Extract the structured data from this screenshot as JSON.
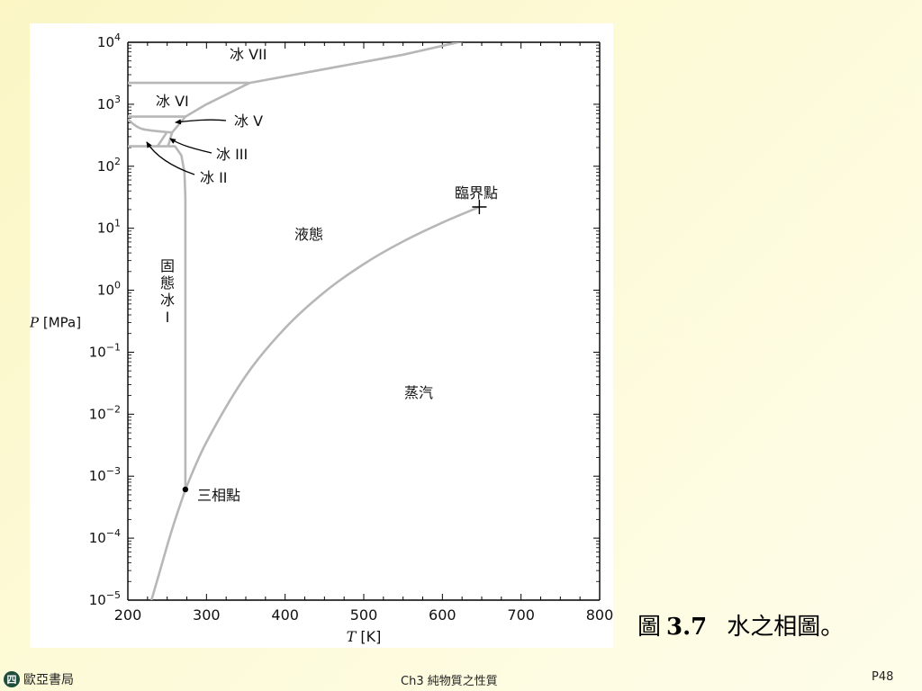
{
  "chart_data": {
    "type": "line",
    "xlabel_var": "T",
    "xlabel_unit": " [K]",
    "ylabel_var": "P",
    "ylabel_unit": " [MPa]",
    "x_ticks": [
      200,
      300,
      400,
      500,
      600,
      700,
      800
    ],
    "xlim": [
      200,
      800
    ],
    "y_scale": "log",
    "ylim": [
      1e-05,
      10000.0
    ],
    "y_tick_labels": [
      {
        "base": "10",
        "exp": "4",
        "value": 10000
      },
      {
        "base": "10",
        "exp": "3",
        "value": 1000
      },
      {
        "base": "10",
        "exp": "2",
        "value": 100
      },
      {
        "base": "10",
        "exp": "1",
        "value": 10
      },
      {
        "base": "10",
        "exp": "0",
        "value": 1
      },
      {
        "base": "10",
        "exp": "−1",
        "value": 0.1
      },
      {
        "base": "10",
        "exp": "−2",
        "value": 0.01
      },
      {
        "base": "10",
        "exp": "−3",
        "value": 0.001
      },
      {
        "base": "10",
        "exp": "−4",
        "value": 0.0001
      },
      {
        "base": "10",
        "exp": "−5",
        "value": 1e-05
      }
    ],
    "series": [
      {
        "id": "vaporization-curve",
        "points": [
          [
            273.16,
            0.000611
          ],
          [
            300,
            0.00354
          ],
          [
            350,
            0.0417
          ],
          [
            400,
            0.2456
          ],
          [
            450,
            0.932
          ],
          [
            500,
            2.64
          ],
          [
            550,
            6.12
          ],
          [
            600,
            12.34
          ],
          [
            647,
            22.06
          ]
        ]
      },
      {
        "id": "sublimation-curve",
        "points": [
          [
            230,
            1e-05
          ],
          [
            240,
            2.72e-05
          ],
          [
            250,
            7.59e-05
          ],
          [
            260,
            0.000196
          ],
          [
            273.16,
            0.000611
          ]
        ]
      },
      {
        "id": "melting-curve-ice-I",
        "points": [
          [
            273.16,
            0.000611
          ],
          [
            273.16,
            30
          ],
          [
            272,
            80
          ],
          [
            268,
            150
          ],
          [
            260,
            209.9
          ],
          [
            251.2,
            209.9
          ]
        ]
      },
      {
        "id": "ice-VII-liquid-boundary",
        "points": [
          [
            355,
            2216
          ],
          [
            550,
            6300
          ],
          [
            725,
            20000
          ]
        ]
      },
      {
        "id": "ice-VI-liquid-boundary",
        "points": [
          [
            273.3,
            632
          ],
          [
            300,
            1000
          ],
          [
            355,
            2216
          ]
        ]
      },
      {
        "id": "ice-V-liquid-boundary",
        "points": [
          [
            256.2,
            350
          ],
          [
            273.3,
            632
          ]
        ]
      },
      {
        "id": "ice-III-liquid-boundary",
        "points": [
          [
            251.2,
            209.9
          ],
          [
            256.2,
            350
          ]
        ]
      },
      {
        "id": "ice-VI-VII-boundary",
        "points": [
          [
            200,
            2216
          ],
          [
            355,
            2216
          ]
        ]
      },
      {
        "id": "ice-V-VI-boundary",
        "points": [
          [
            200,
            632
          ],
          [
            273.3,
            632
          ]
        ]
      },
      {
        "id": "ice-II-V-boundary",
        "points": [
          [
            200,
            570
          ],
          [
            218,
            400
          ],
          [
            256.2,
            350
          ]
        ]
      },
      {
        "id": "ice-II-III-boundary",
        "points": [
          [
            238,
            213
          ],
          [
            249,
            344
          ]
        ]
      },
      {
        "id": "ice-I-II-boundary",
        "points": [
          [
            200,
            209.9
          ],
          [
            251.2,
            209.9
          ]
        ]
      }
    ],
    "triple_point": {
      "x": 273.16,
      "y": 0.000611
    },
    "critical_point": {
      "x": 647,
      "y": 22.06
    },
    "region_labels": {
      "ice_vii": "冰 VII",
      "ice_vi": "冰 VI",
      "ice_v": "冰 V",
      "ice_iii": "冰 III",
      "ice_ii": "冰 II",
      "liquid": "液態",
      "vapor": "蒸汽",
      "solid_ice_i": [
        "固",
        "態",
        "冰",
        "I"
      ],
      "critical": "臨界點",
      "triple": "三相點"
    },
    "colors": {
      "curve": "#b7b7b7",
      "axis": "#000000",
      "marker": "#000000"
    }
  },
  "caption": {
    "prefix": "圖",
    "number": "3.7",
    "text": "水之相圖。"
  },
  "footer": {
    "logo_glyph": "四",
    "publisher": "歐亞書局",
    "chapter": "Ch3 純物質之性質",
    "page": "P48"
  }
}
